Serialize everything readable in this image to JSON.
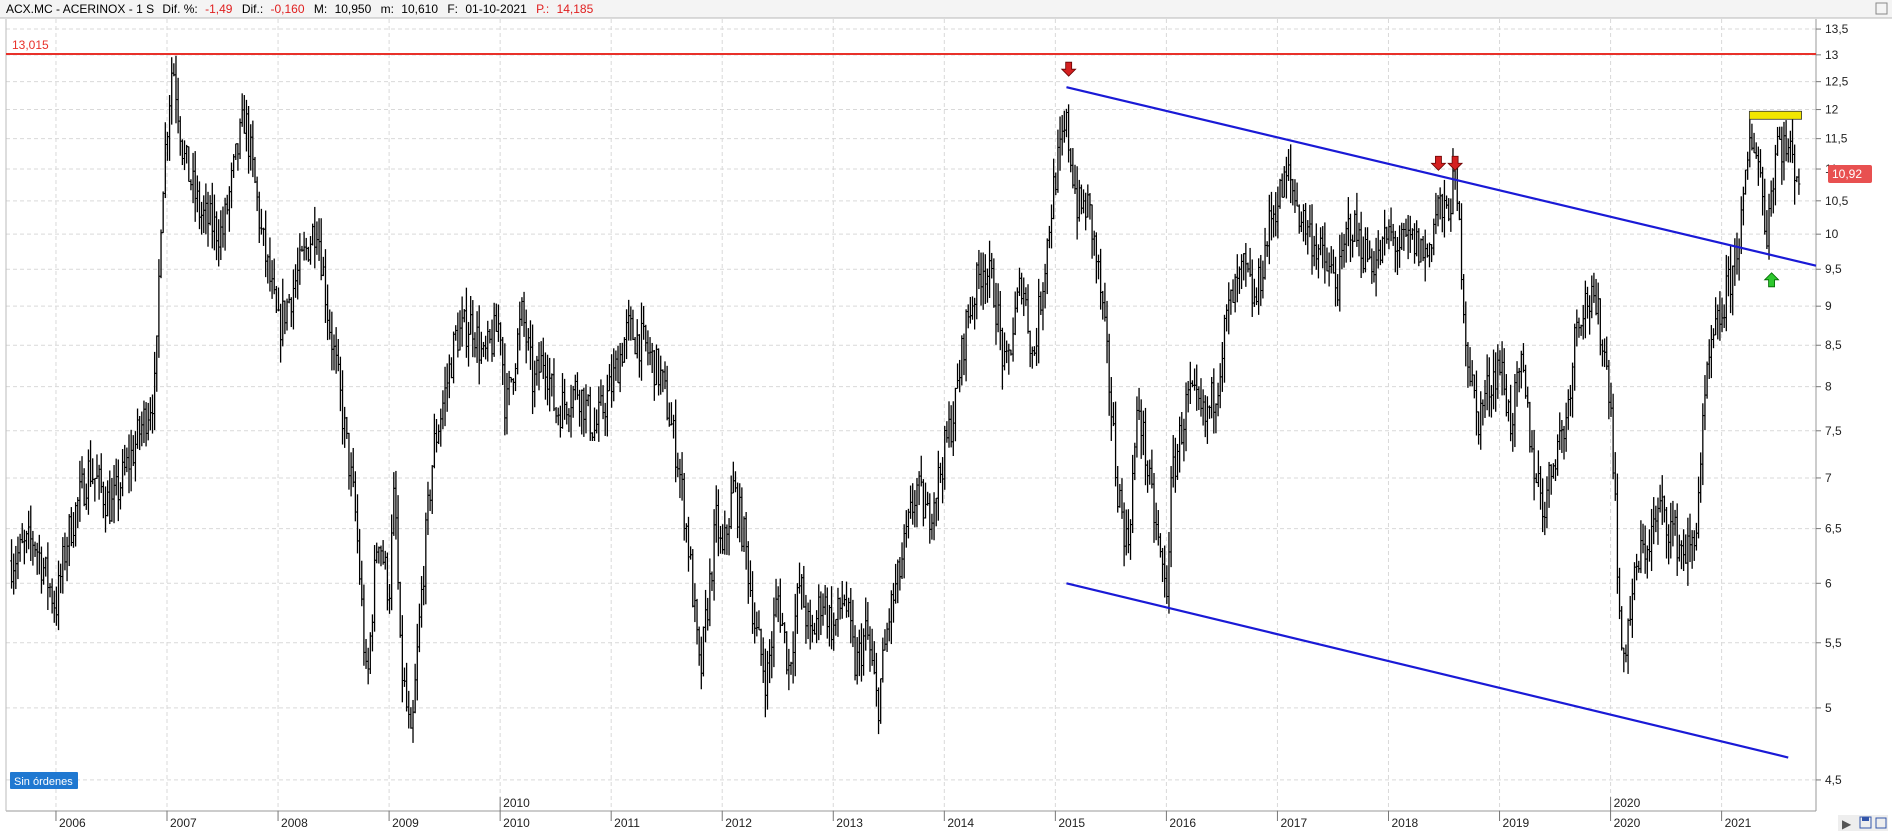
{
  "header": {
    "symbol": "ACX.MC",
    "name": "ACERINOX",
    "period": "1 S",
    "dif_pct_label": "Dif. %:",
    "dif_pct_value": "-1,49",
    "dif_label": "Dif.:",
    "dif_value": "-0,160",
    "max_label": "M:",
    "max_value": "10,950",
    "min_label": "m:",
    "min_value": "10,610",
    "date_label": "F:",
    "date_value": "01-10-2021",
    "price_label": "P.:",
    "price_value": "14,185"
  },
  "orders_badge": "Sin órdenes",
  "last_price_badge": "10,92",
  "resistance_label": "13,015",
  "colors": {
    "resistance": "#e8312a",
    "trendline": "#1a1ad6",
    "arrow_down": "#d42020",
    "arrow_up": "#2ec82e",
    "top_box": "#f2e600",
    "badge": "#1f78d1",
    "price_badge": "#e85050",
    "candles": "#000000"
  },
  "chart_data": {
    "type": "line",
    "style": "weekly high-low bars",
    "y_scale": "log",
    "ylim": [
      4.3,
      13.7
    ],
    "xlim": [
      2005.55,
      2021.85
    ],
    "grid": true,
    "y_ticks": [
      "13,5",
      "13",
      "12,5",
      "12",
      "11,5",
      "11",
      "10,5",
      "10",
      "9,5",
      "9",
      "8,5",
      "8",
      "7,5",
      "7",
      "6,5",
      "6",
      "5,5",
      "5",
      "4,5"
    ],
    "x_ticks": [
      "2006",
      "2007",
      "2008",
      "2009",
      "2010",
      "2011",
      "2012",
      "2013",
      "2014",
      "2015",
      "2016",
      "2017",
      "2018",
      "2019",
      "2020",
      "2021"
    ],
    "x_ticks_upper": [
      "2010",
      "2020"
    ],
    "series": [
      {
        "values": [
          [
            2005.6,
            6.2
          ],
          [
            2005.8,
            6.4
          ],
          [
            2006.0,
            5.8
          ],
          [
            2006.1,
            6.4
          ],
          [
            2006.3,
            7.1
          ],
          [
            2006.5,
            6.7
          ],
          [
            2006.7,
            7.3
          ],
          [
            2006.9,
            8.0
          ],
          [
            2006.95,
            10.5
          ],
          [
            2007.05,
            12.9
          ],
          [
            2007.15,
            11.2
          ],
          [
            2007.3,
            10.3
          ],
          [
            2007.5,
            10.0
          ],
          [
            2007.7,
            11.9
          ],
          [
            2007.85,
            10.0
          ],
          [
            2008.0,
            8.7
          ],
          [
            2008.15,
            9.3
          ],
          [
            2008.35,
            10.2
          ],
          [
            2008.45,
            8.9
          ],
          [
            2008.6,
            7.5
          ],
          [
            2008.7,
            6.6
          ],
          [
            2008.8,
            5.1
          ],
          [
            2008.9,
            6.5
          ],
          [
            2009.0,
            5.9
          ],
          [
            2009.05,
            6.9
          ],
          [
            2009.1,
            5.4
          ],
          [
            2009.2,
            4.7
          ],
          [
            2009.3,
            6.0
          ],
          [
            2009.4,
            7.3
          ],
          [
            2009.5,
            7.9
          ],
          [
            2009.6,
            8.6
          ],
          [
            2009.75,
            8.8
          ],
          [
            2009.85,
            8.3
          ],
          [
            2010.0,
            8.8
          ],
          [
            2010.05,
            7.7
          ],
          [
            2010.2,
            8.9
          ],
          [
            2010.3,
            8.0
          ],
          [
            2010.4,
            8.4
          ],
          [
            2010.5,
            7.7
          ],
          [
            2010.7,
            8.0
          ],
          [
            2010.85,
            7.5
          ],
          [
            2011.0,
            8.0
          ],
          [
            2011.15,
            8.7
          ],
          [
            2011.3,
            8.5
          ],
          [
            2011.45,
            8.1
          ],
          [
            2011.6,
            7.2
          ],
          [
            2011.7,
            6.3
          ],
          [
            2011.8,
            5.2
          ],
          [
            2011.9,
            6.1
          ],
          [
            2011.95,
            6.6
          ],
          [
            2012.0,
            6.2
          ],
          [
            2012.1,
            6.9
          ],
          [
            2012.2,
            6.4
          ],
          [
            2012.3,
            5.6
          ],
          [
            2012.4,
            5.2
          ],
          [
            2012.5,
            5.9
          ],
          [
            2012.6,
            5.3
          ],
          [
            2012.7,
            6.0
          ],
          [
            2012.8,
            5.5
          ],
          [
            2012.9,
            5.9
          ],
          [
            2013.0,
            5.6
          ],
          [
            2013.1,
            5.9
          ],
          [
            2013.2,
            5.3
          ],
          [
            2013.3,
            5.6
          ],
          [
            2013.4,
            5.0
          ],
          [
            2013.5,
            5.7
          ],
          [
            2013.6,
            6.1
          ],
          [
            2013.75,
            6.9
          ],
          [
            2013.85,
            6.6
          ],
          [
            2013.95,
            7.0
          ],
          [
            2014.1,
            7.8
          ],
          [
            2014.2,
            8.8
          ],
          [
            2014.35,
            9.6
          ],
          [
            2014.45,
            9.2
          ],
          [
            2014.55,
            8.1
          ],
          [
            2014.7,
            9.4
          ],
          [
            2014.8,
            8.3
          ],
          [
            2014.9,
            9.5
          ],
          [
            2015.0,
            10.9
          ],
          [
            2015.1,
            11.7
          ],
          [
            2015.2,
            10.4
          ],
          [
            2015.3,
            10.4
          ],
          [
            2015.4,
            9.3
          ],
          [
            2015.5,
            7.8
          ],
          [
            2015.55,
            7.0
          ],
          [
            2015.65,
            6.3
          ],
          [
            2015.75,
            7.8
          ],
          [
            2015.85,
            6.9
          ],
          [
            2015.95,
            6.2
          ],
          [
            2016.0,
            5.9
          ],
          [
            2016.05,
            7.0
          ],
          [
            2016.1,
            7.3
          ],
          [
            2016.2,
            7.9
          ],
          [
            2016.35,
            7.6
          ],
          [
            2016.45,
            8.0
          ],
          [
            2016.55,
            8.9
          ],
          [
            2016.7,
            9.5
          ],
          [
            2016.8,
            9.0
          ],
          [
            2016.95,
            10.3
          ],
          [
            2017.1,
            10.9
          ],
          [
            2017.2,
            10.3
          ],
          [
            2017.3,
            10.0
          ],
          [
            2017.45,
            9.5
          ],
          [
            2017.55,
            9.3
          ],
          [
            2017.65,
            10.2
          ],
          [
            2017.8,
            9.7
          ],
          [
            2017.9,
            9.6
          ],
          [
            2018.0,
            10.0
          ],
          [
            2018.1,
            9.8
          ],
          [
            2018.2,
            9.9
          ],
          [
            2018.35,
            9.7
          ],
          [
            2018.45,
            10.5
          ],
          [
            2018.5,
            10.2
          ],
          [
            2018.6,
            10.8
          ],
          [
            2018.65,
            9.8
          ],
          [
            2018.7,
            8.5
          ],
          [
            2018.8,
            7.6
          ],
          [
            2018.9,
            8.0
          ],
          [
            2019.0,
            8.3
          ],
          [
            2019.1,
            7.6
          ],
          [
            2019.2,
            8.2
          ],
          [
            2019.3,
            7.2
          ],
          [
            2019.4,
            6.7
          ],
          [
            2019.5,
            7.3
          ],
          [
            2019.6,
            7.6
          ],
          [
            2019.7,
            8.9
          ],
          [
            2019.8,
            9.1
          ],
          [
            2019.9,
            8.8
          ],
          [
            2020.0,
            7.9
          ],
          [
            2020.05,
            6.5
          ],
          [
            2020.1,
            5.3
          ],
          [
            2020.15,
            5.6
          ],
          [
            2020.25,
            6.2
          ],
          [
            2020.35,
            6.4
          ],
          [
            2020.45,
            6.7
          ],
          [
            2020.55,
            6.5
          ],
          [
            2020.65,
            6.3
          ],
          [
            2020.75,
            6.3
          ],
          [
            2020.8,
            7.0
          ],
          [
            2020.85,
            7.8
          ],
          [
            2020.9,
            8.4
          ],
          [
            2021.0,
            8.9
          ],
          [
            2021.1,
            9.5
          ],
          [
            2021.2,
            10.4
          ],
          [
            2021.25,
            11.4
          ],
          [
            2021.3,
            11.5
          ],
          [
            2021.35,
            10.9
          ],
          [
            2021.4,
            10.0
          ],
          [
            2021.45,
            10.7
          ],
          [
            2021.5,
            11.5
          ],
          [
            2021.6,
            11.3
          ],
          [
            2021.7,
            10.9
          ]
        ]
      }
    ],
    "resistance": 13.015,
    "trendline_upper": [
      [
        2015.1,
        12.4
      ],
      [
        2021.85,
        9.55
      ]
    ],
    "trendline_lower": [
      [
        2015.1,
        6.0
      ],
      [
        2021.6,
        4.65
      ]
    ],
    "arrows_down": [
      [
        2015.12,
        12.6
      ],
      [
        2018.45,
        10.98
      ],
      [
        2018.6,
        10.98
      ]
    ],
    "arrows_up": [
      [
        2021.45,
        9.45
      ]
    ],
    "top_zone": {
      "x_start": 2021.25,
      "x_end": 2021.72,
      "value": 11.9
    },
    "last_price": 10.92
  }
}
